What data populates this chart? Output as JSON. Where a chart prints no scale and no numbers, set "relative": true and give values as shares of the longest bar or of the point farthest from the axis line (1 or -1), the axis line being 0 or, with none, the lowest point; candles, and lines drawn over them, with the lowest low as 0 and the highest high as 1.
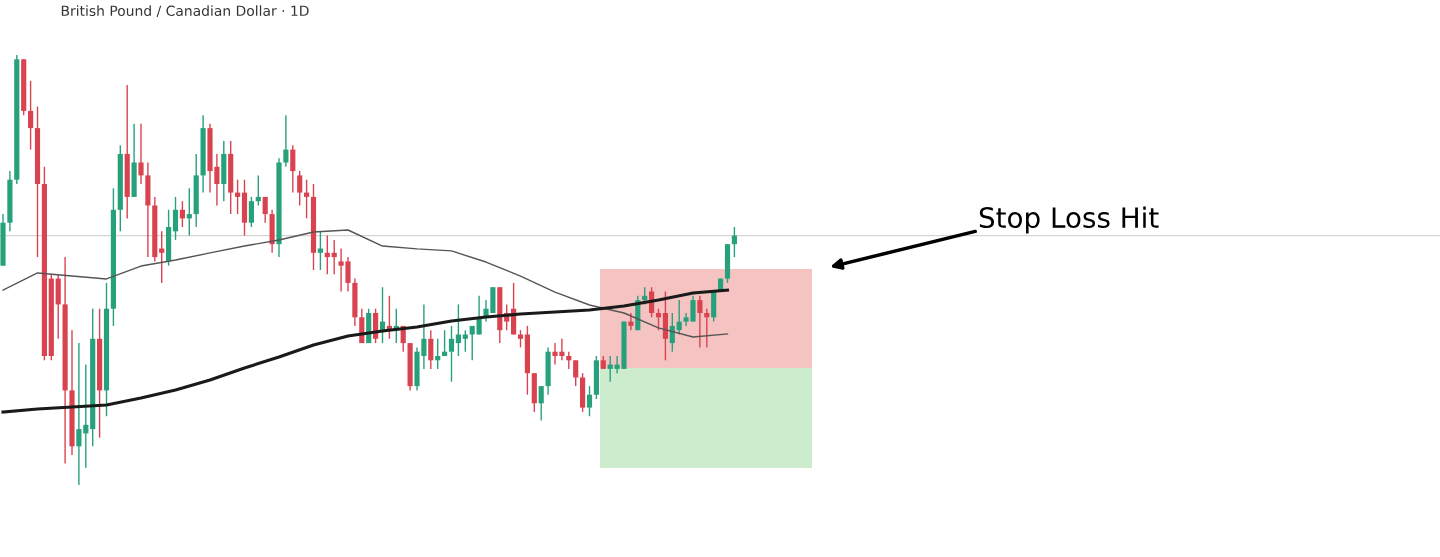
{
  "chart_data": [
    {
      "type": "candlestick",
      "title": "British Pound / Canadian Dollar · 1D",
      "relative": true,
      "categories": [
        null,
        null,
        null,
        null,
        null,
        null,
        null,
        null,
        null,
        null,
        null,
        null,
        null,
        null,
        null,
        null,
        null,
        null,
        null,
        null,
        null,
        null,
        null,
        null,
        null,
        null,
        null,
        null,
        null,
        null,
        null,
        null,
        null,
        null,
        null,
        null,
        null,
        null,
        null,
        null,
        null,
        null,
        null,
        null,
        null,
        null,
        null,
        null,
        null,
        null,
        null,
        null,
        null,
        null,
        null,
        null,
        null,
        null,
        null,
        null,
        null,
        null,
        null,
        null,
        null,
        null,
        null,
        null,
        null,
        null,
        null,
        null,
        null,
        null,
        null,
        null,
        null,
        null,
        null,
        null,
        null,
        null,
        null,
        null,
        null,
        null,
        null,
        null,
        null,
        null,
        null,
        null,
        null,
        null,
        null,
        null,
        null,
        null,
        null,
        null,
        null,
        null,
        null,
        null,
        null,
        null,
        null
      ],
      "ohlc": [
        [
          0.51,
          0.63,
          0.51,
          0.61
        ],
        [
          0.61,
          0.73,
          0.59,
          0.71
        ],
        [
          0.71,
          1.0,
          0.7,
          0.99
        ],
        [
          0.99,
          0.99,
          0.86,
          0.87
        ],
        [
          0.87,
          0.94,
          0.78,
          0.83
        ],
        [
          0.83,
          0.88,
          0.53,
          0.7
        ],
        [
          0.7,
          0.74,
          0.29,
          0.3
        ],
        [
          0.48,
          0.49,
          0.29,
          0.3
        ],
        [
          0.48,
          0.49,
          0.34,
          0.42
        ],
        [
          0.42,
          0.53,
          0.05,
          0.22
        ],
        [
          0.22,
          0.36,
          0.07,
          0.09
        ],
        [
          0.09,
          0.33,
          0.0,
          0.13
        ],
        [
          0.12,
          0.28,
          0.04,
          0.14
        ],
        [
          0.13,
          0.41,
          0.09,
          0.34
        ],
        [
          0.34,
          0.41,
          0.11,
          0.22
        ],
        [
          0.22,
          0.47,
          0.16,
          0.41
        ],
        [
          0.41,
          0.69,
          0.37,
          0.64
        ],
        [
          0.64,
          0.79,
          0.59,
          0.77
        ],
        [
          0.77,
          0.93,
          0.62,
          0.67
        ],
        [
          0.67,
          0.84,
          0.67,
          0.75
        ],
        [
          0.75,
          0.84,
          0.7,
          0.72
        ],
        [
          0.72,
          0.75,
          0.53,
          0.65
        ],
        [
          0.65,
          0.67,
          0.52,
          0.53
        ],
        [
          0.55,
          0.59,
          0.47,
          0.54
        ],
        [
          0.52,
          0.64,
          0.51,
          0.6
        ],
        [
          0.59,
          0.67,
          0.57,
          0.64
        ],
        [
          0.64,
          0.66,
          0.6,
          0.62
        ],
        [
          0.62,
          0.69,
          0.58,
          0.63
        ],
        [
          0.63,
          0.77,
          0.6,
          0.72
        ],
        [
          0.72,
          0.86,
          0.68,
          0.83
        ],
        [
          0.83,
          0.84,
          0.68,
          0.73
        ],
        [
          0.74,
          0.77,
          0.65,
          0.7
        ],
        [
          0.7,
          0.8,
          0.66,
          0.77
        ],
        [
          0.77,
          0.8,
          0.63,
          0.68
        ],
        [
          0.68,
          0.71,
          0.63,
          0.67
        ],
        [
          0.68,
          0.71,
          0.58,
          0.61
        ],
        [
          0.61,
          0.67,
          0.6,
          0.66
        ],
        [
          0.66,
          0.72,
          0.65,
          0.67
        ],
        [
          0.67,
          0.67,
          0.61,
          0.63
        ],
        [
          0.63,
          0.64,
          0.54,
          0.56
        ],
        [
          0.56,
          0.76,
          0.53,
          0.75
        ],
        [
          0.75,
          0.86,
          0.74,
          0.78
        ],
        [
          0.78,
          0.79,
          0.68,
          0.73
        ],
        [
          0.72,
          0.73,
          0.65,
          0.68
        ],
        [
          0.68,
          0.71,
          0.62,
          0.67
        ],
        [
          0.67,
          0.7,
          0.5,
          0.54
        ],
        [
          0.54,
          0.59,
          0.5,
          0.55
        ],
        [
          0.54,
          0.58,
          0.49,
          0.53
        ],
        [
          0.54,
          0.57,
          0.49,
          0.53
        ],
        [
          0.52,
          0.55,
          0.45,
          0.51
        ],
        [
          0.52,
          0.53,
          0.45,
          0.47
        ],
        [
          0.47,
          0.48,
          0.37,
          0.39
        ],
        [
          0.39,
          0.41,
          0.33,
          0.33
        ],
        [
          0.33,
          0.41,
          0.33,
          0.4
        ],
        [
          0.4,
          0.41,
          0.33,
          0.34
        ],
        [
          0.36,
          0.46,
          0.33,
          0.38
        ],
        [
          0.37,
          0.44,
          0.34,
          0.36
        ],
        [
          0.36,
          0.41,
          0.33,
          0.37
        ],
        [
          0.37,
          0.37,
          0.31,
          0.33
        ],
        [
          0.33,
          0.33,
          0.22,
          0.23
        ],
        [
          0.23,
          0.32,
          0.22,
          0.31
        ],
        [
          0.3,
          0.42,
          0.27,
          0.34
        ],
        [
          0.34,
          0.36,
          0.27,
          0.29
        ],
        [
          0.29,
          0.34,
          0.27,
          0.3
        ],
        [
          0.3,
          0.36,
          0.3,
          0.31
        ],
        [
          0.31,
          0.37,
          0.24,
          0.34
        ],
        [
          0.33,
          0.42,
          0.3,
          0.35
        ],
        [
          0.34,
          0.36,
          0.31,
          0.35
        ],
        [
          0.35,
          0.37,
          0.29,
          0.37
        ],
        [
          0.35,
          0.44,
          0.35,
          0.39
        ],
        [
          0.39,
          0.43,
          0.38,
          0.41
        ],
        [
          0.4,
          0.46,
          0.4,
          0.46
        ],
        [
          0.46,
          0.46,
          0.33,
          0.36
        ],
        [
          0.4,
          0.42,
          0.36,
          0.38
        ],
        [
          0.41,
          0.47,
          0.35,
          0.35
        ],
        [
          0.35,
          0.36,
          0.32,
          0.34
        ],
        [
          0.35,
          0.37,
          0.21,
          0.26
        ],
        [
          0.26,
          0.26,
          0.17,
          0.19
        ],
        [
          0.19,
          0.23,
          0.15,
          0.23
        ],
        [
          0.23,
          0.32,
          0.21,
          0.31
        ],
        [
          0.31,
          0.33,
          0.28,
          0.3
        ],
        [
          0.31,
          0.34,
          0.29,
          0.3
        ],
        [
          0.3,
          0.31,
          0.27,
          0.29
        ],
        [
          0.29,
          0.29,
          0.23,
          0.25
        ],
        [
          0.25,
          0.26,
          0.17,
          0.18
        ],
        [
          0.18,
          0.23,
          0.16,
          0.21
        ],
        [
          0.21,
          0.3,
          0.2,
          0.29
        ],
        [
          0.29,
          0.3,
          0.27,
          0.27
        ],
        [
          0.27,
          0.3,
          0.24,
          0.28
        ],
        [
          0.27,
          0.3,
          0.26,
          0.28
        ],
        [
          0.27,
          0.38,
          0.27,
          0.38
        ],
        [
          0.38,
          0.4,
          0.36,
          0.37
        ],
        [
          0.36,
          0.44,
          0.36,
          0.43
        ],
        [
          0.43,
          0.46,
          0.42,
          0.44
        ],
        [
          0.45,
          0.46,
          0.39,
          0.4
        ],
        [
          0.4,
          0.41,
          0.36,
          0.39
        ],
        [
          0.4,
          0.45,
          0.29,
          0.34
        ],
        [
          0.33,
          0.4,
          0.31,
          0.37
        ],
        [
          0.36,
          0.43,
          0.35,
          0.38
        ],
        [
          0.38,
          0.4,
          0.37,
          0.39
        ],
        [
          0.38,
          0.44,
          0.38,
          0.43
        ],
        [
          0.43,
          0.44,
          0.32,
          0.4
        ],
        [
          0.4,
          0.41,
          0.32,
          0.39
        ],
        [
          0.39,
          0.45,
          0.38,
          0.45
        ],
        [
          0.45,
          0.48,
          0.45,
          0.48
        ],
        [
          0.48,
          0.56,
          0.47,
          0.56
        ],
        [
          0.56,
          0.6,
          0.53,
          0.58
        ]
      ],
      "colors": [
        "#26a17b",
        "#26a17b",
        "#26a17b",
        "#d9434f",
        "#d9434f",
        "#d9434f",
        "#d9434f",
        "#d9434f",
        "#d9434f",
        "#d9434f",
        "#d9434f",
        "#26a17b",
        "#26a17b",
        "#26a17b",
        "#d9434f",
        "#26a17b",
        "#26a17b",
        "#26a17b",
        "#d9434f",
        "#26a17b",
        "#d9434f",
        "#d9434f",
        "#d9434f",
        "#d9434f",
        "#26a17b",
        "#26a17b",
        "#d9434f",
        "#26a17b",
        "#26a17b",
        "#26a17b",
        "#d9434f",
        "#d9434f",
        "#26a17b",
        "#d9434f",
        "#d9434f",
        "#d9434f",
        "#26a17b",
        "#26a17b",
        "#d9434f",
        "#d9434f",
        "#26a17b",
        "#26a17b",
        "#d9434f",
        "#d9434f",
        "#d9434f",
        "#d9434f",
        "#26a17b",
        "#d9434f",
        "#d9434f",
        "#d9434f",
        "#d9434f",
        "#d9434f",
        "#d9434f",
        "#26a17b",
        "#d9434f",
        "#26a17b",
        "#d9434f",
        "#26a17b",
        "#d9434f",
        "#d9434f",
        "#26a17b",
        "#26a17b",
        "#d9434f",
        "#26a17b",
        "#26a17b",
        "#26a17b",
        "#26a17b",
        "#26a17b",
        "#26a17b",
        "#26a17b",
        "#26a17b",
        "#26a17b",
        "#d9434f",
        "#d9434f",
        "#d9434f",
        "#d9434f",
        "#d9434f",
        "#d9434f",
        "#26a17b",
        "#26a17b",
        "#d9434f",
        "#d9434f",
        "#d9434f",
        "#d9434f",
        "#d9434f",
        "#26a17b",
        "#26a17b",
        "#d9434f",
        "#26a17b",
        "#26a17b",
        "#26a17b",
        "#d9434f",
        "#26a17b",
        "#26a17b",
        "#d9434f",
        "#d9434f",
        "#d9434f",
        "#26a17b",
        "#26a17b",
        "#26a17b",
        "#26a17b",
        "#d9434f",
        "#d9434f",
        "#26a17b",
        "#26a17b",
        "#26a17b",
        "#26a17b"
      ],
      "ref_lines": [
        {
          "axis": "y",
          "value": 0.58,
          "color": "#d5d5d5"
        }
      ],
      "annotations": [
        "Stop Loss Hit"
      ]
    },
    {
      "type": "line",
      "relative": true,
      "categories": [
        null,
        null,
        null,
        null,
        null,
        null,
        null,
        null,
        null,
        null,
        null,
        null,
        null,
        null,
        null,
        null,
        null,
        null,
        null,
        null,
        null,
        null
      ],
      "series": [
        {
          "color": "#555555",
          "values": [
            0.67,
            0.764,
            0.747,
            0.731,
            0.802,
            0.835,
            0.874,
            0.912,
            0.945,
            0.989,
            1.0,
            0.912,
            0.896,
            0.885,
            0.824,
            0.747,
            0.659,
            0.588,
            0.544,
            0.462,
            0.412,
            0.429
          ]
        },
        {
          "color": "#1a1a1a",
          "values": [
            0.0,
            0.016,
            0.027,
            0.038,
            0.077,
            0.121,
            0.176,
            0.242,
            0.302,
            0.368,
            0.418,
            0.445,
            0.467,
            0.5,
            0.522,
            0.538,
            0.549,
            0.56,
            0.582,
            0.615,
            0.654,
            0.67
          ]
        }
      ]
    }
  ]
}
